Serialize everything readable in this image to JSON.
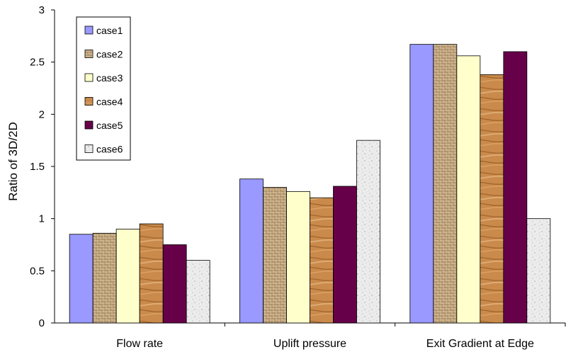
{
  "chart_data": {
    "type": "bar",
    "title": "",
    "xlabel": "",
    "ylabel": "Ratio of 3D/2D",
    "ylim": [
      0,
      3
    ],
    "yticks": [
      0,
      0.5,
      1,
      1.5,
      2,
      2.5,
      3
    ],
    "ytick_labels": [
      "0",
      "0.5",
      "1",
      "1.5",
      "2",
      "2.5",
      "3"
    ],
    "grid": false,
    "legend_position": "top-left",
    "categories": [
      "Flow rate",
      "Uplift pressure",
      "Exit Gradient at Edge"
    ],
    "series": [
      {
        "name": "case1",
        "values": [
          0.85,
          1.38,
          2.67
        ],
        "color": "#9999ff",
        "pattern": "solid"
      },
      {
        "name": "case2",
        "values": [
          0.86,
          1.3,
          2.67
        ],
        "color": "#c4a77c",
        "pattern": "weave"
      },
      {
        "name": "case3",
        "values": [
          0.9,
          1.26,
          2.56
        ],
        "color": "#ffffcc",
        "pattern": "solid"
      },
      {
        "name": "case4",
        "values": [
          0.95,
          1.2,
          2.38
        ],
        "color": "#c98a4b",
        "pattern": "wood"
      },
      {
        "name": "case5",
        "values": [
          0.75,
          1.31,
          2.6
        ],
        "color": "#660049",
        "pattern": "solid"
      },
      {
        "name": "case6",
        "values": [
          0.6,
          1.75,
          1.0
        ],
        "color": "#e6e6e6",
        "pattern": "granite"
      }
    ]
  }
}
